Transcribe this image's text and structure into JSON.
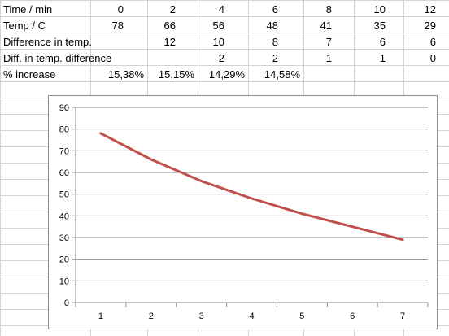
{
  "table": {
    "rows": [
      {
        "label": "Time / min",
        "values": [
          "0",
          "2",
          "4",
          "6",
          "8",
          "10",
          "12"
        ]
      },
      {
        "label": "Temp / C",
        "values": [
          "78",
          "66",
          "56",
          "48",
          "41",
          "35",
          "29"
        ]
      },
      {
        "label": "Difference in temp.",
        "values": [
          "",
          "12",
          "10",
          "8",
          "7",
          "6",
          "6"
        ]
      },
      {
        "label": "Diff. in temp. difference",
        "values": [
          "",
          "",
          "2",
          "2",
          "1",
          "1",
          "0"
        ]
      },
      {
        "label": "% increase",
        "values": [
          "15,38%",
          "15,15%",
          "14,29%",
          "14,58%",
          "",
          "",
          ""
        ]
      }
    ]
  },
  "chart_data": {
    "type": "line",
    "categories": [
      "1",
      "2",
      "3",
      "4",
      "5",
      "6",
      "7"
    ],
    "series": [
      {
        "values": [
          78,
          66,
          56,
          48,
          41,
          35,
          29
        ],
        "color": "#c0504d"
      }
    ],
    "ylim": [
      0,
      90
    ],
    "yticks": [
      "0",
      "10",
      "20",
      "30",
      "40",
      "50",
      "60",
      "70",
      "80",
      "90"
    ],
    "grid": true,
    "legend": "none"
  }
}
